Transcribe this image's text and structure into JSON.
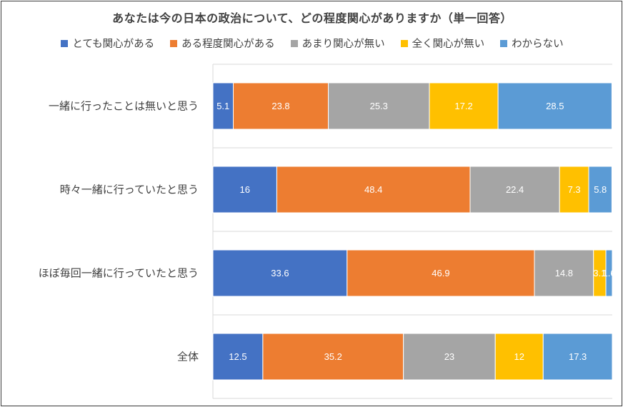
{
  "chart_data": {
    "type": "bar",
    "orientation": "horizontal",
    "stacked": true,
    "title": "あなたは今の日本の政治について、どの程度関心がありますか（単一回答）",
    "categories": [
      "一緒に行ったことは無いと思う",
      "時々一緒に行っていたと思う",
      "ほぼ毎回一緒に行っていたと思う",
      "全体"
    ],
    "series": [
      {
        "name": "とても関心がある",
        "color": "#4472C4",
        "values": [
          5.1,
          16,
          33.6,
          12.5
        ],
        "labels": [
          "5.1",
          "16",
          "33.6",
          "12.5"
        ]
      },
      {
        "name": "ある程度関心がある",
        "color": "#ED7D31",
        "values": [
          23.8,
          48.4,
          46.9,
          35.2
        ],
        "labels": [
          "23.8",
          "48.4",
          "46.9",
          "35.2"
        ]
      },
      {
        "name": "あまり関心が無い",
        "color": "#A5A5A5",
        "values": [
          25.3,
          22.4,
          14.8,
          23
        ],
        "labels": [
          "25.3",
          "22.4",
          "14.8",
          "23"
        ]
      },
      {
        "name": "全く関心が無い",
        "color": "#FFC000",
        "values": [
          17.2,
          7.3,
          3.1,
          12
        ],
        "labels": [
          "17.2",
          "7.3",
          "3.1",
          "12"
        ]
      },
      {
        "name": "わからない",
        "color": "#5B9BD5",
        "values": [
          28.5,
          5.8,
          1.6,
          17.3
        ],
        "labels": [
          "28.5",
          "5.8",
          "1.6",
          "17.3"
        ]
      }
    ],
    "xlim": [
      0,
      100
    ],
    "legend_position": "top",
    "gridlines": "horizontal category separators"
  }
}
